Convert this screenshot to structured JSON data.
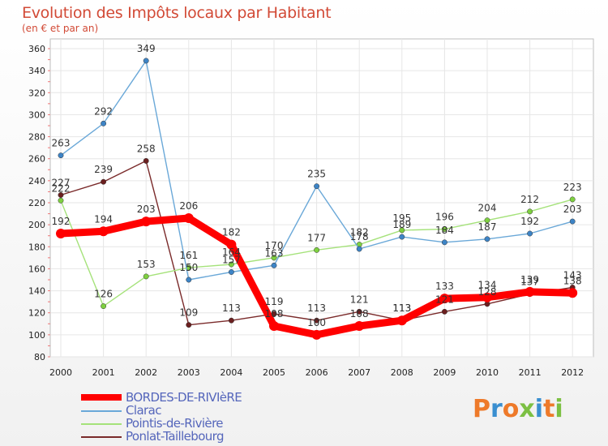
{
  "chart_data": {
    "type": "line",
    "title": "Evolution des Impôts locaux par Habitant",
    "subtitle": "(en € et par an)",
    "x": [
      "2000",
      "2001",
      "2002",
      "2003",
      "2004",
      "2005",
      "2006",
      "2007",
      "2008",
      "2009",
      "2010",
      "2011",
      "2012"
    ],
    "ylim": [
      80,
      360
    ],
    "yticks": [
      80,
      100,
      120,
      140,
      160,
      180,
      200,
      220,
      240,
      260,
      280,
      300,
      320,
      340,
      360
    ],
    "series": [
      {
        "name": "BORDES-DE-RIVIèRE",
        "color": "#ff0000",
        "marker": "#ff0000",
        "values": [
          192,
          194,
          203,
          206,
          182,
          108,
          100,
          108,
          113,
          133,
          134,
          139,
          138
        ]
      },
      {
        "name": "Clarac",
        "color": "#6aa8d8",
        "marker": "#3d84c6",
        "values": [
          263,
          292,
          349,
          150,
          157,
          163,
          235,
          178,
          189,
          184,
          187,
          192,
          203
        ]
      },
      {
        "name": "Pointis-de-Rivière",
        "color": "#a5e27a",
        "marker": "#7ed040",
        "values": [
          222,
          126,
          153,
          161,
          164,
          170,
          177,
          182,
          195,
          196,
          204,
          212,
          223
        ]
      },
      {
        "name": "Ponlat-Taillebourg",
        "color": "#7a2a2a",
        "marker": "#6b1f1f",
        "values": [
          227,
          239,
          258,
          109,
          113,
          119,
          113,
          121,
          113,
          121,
          128,
          137,
          143
        ]
      }
    ]
  },
  "logo": {
    "text": "Proxiti",
    "colors": [
      "#ee7a2a",
      "#3a8fd0",
      "#ee7a2a",
      "#7cc043",
      "#3a8fd0",
      "#ee7a2a",
      "#7cc043"
    ]
  }
}
